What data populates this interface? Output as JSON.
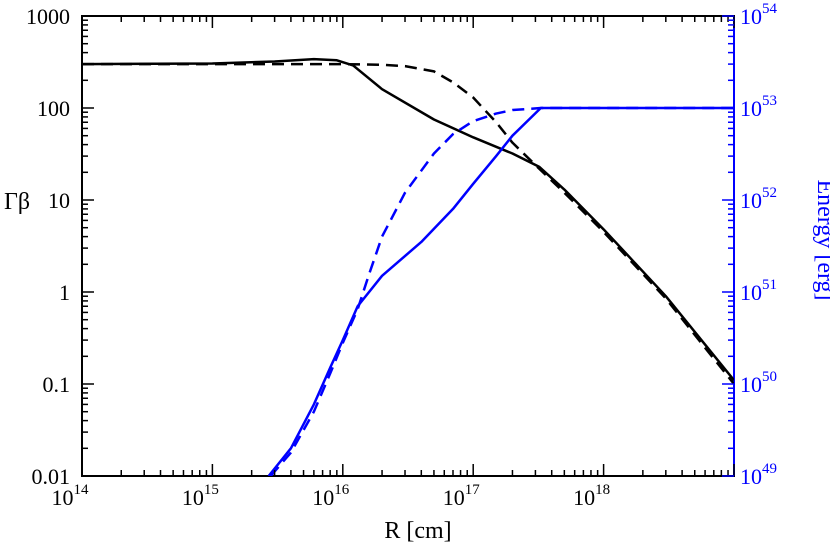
{
  "chart_data": {
    "type": "line",
    "title": "",
    "xlabel": "R [cm]",
    "ylabel_left": "Γβ",
    "ylabel_right": "Energy [erg]",
    "x_scale": "log",
    "y_left_scale": "log",
    "y_right_scale": "log",
    "xlim": [
      100000000000000.0,
      1e+19
    ],
    "ylim_left": [
      0.01,
      1000
    ],
    "ylim_right": [
      1e+49,
      1e+54
    ],
    "grid": false,
    "legend": "none",
    "colors": {
      "gamma_beta": "#000000",
      "energy": "#0000ff"
    },
    "x_ticks": [
      {
        "base": "10",
        "exp": "14"
      },
      {
        "base": "10",
        "exp": "15"
      },
      {
        "base": "10",
        "exp": "16"
      },
      {
        "base": "10",
        "exp": "17"
      },
      {
        "base": "10",
        "exp": "18"
      }
    ],
    "y_left_ticks": [
      "0.01",
      "0.1",
      "1",
      "10",
      "100",
      "1000"
    ],
    "y_right_ticks": [
      {
        "base": "10",
        "exp": "49"
      },
      {
        "base": "10",
        "exp": "50"
      },
      {
        "base": "10",
        "exp": "51"
      },
      {
        "base": "10",
        "exp": "52"
      },
      {
        "base": "10",
        "exp": "53"
      },
      {
        "base": "10",
        "exp": "54"
      }
    ],
    "series": [
      {
        "axis": "left",
        "color": "#000000",
        "style": "solid",
        "x": [
          100000000000000.0,
          1000000000000000.0,
          3000000000000000.0,
          6000000000000000.0,
          9000000000000000.0,
          1.2e+16,
          2e+16,
          5e+16,
          1e+17,
          2e+17,
          3.2e+17,
          5e+17,
          1e+18,
          3e+18,
          1e+19
        ],
        "y": [
          300,
          305,
          320,
          340,
          330,
          290,
          160,
          75,
          48,
          32,
          23,
          13,
          4.8,
          0.9,
          0.11
        ]
      },
      {
        "axis": "left",
        "color": "#000000",
        "style": "dashed",
        "x": [
          100000000000000.0,
          1000000000000000.0,
          5000000000000000.0,
          1e+16,
          2e+16,
          3e+16,
          5e+16,
          7e+16,
          1e+17,
          1.5e+17,
          2e+17,
          3e+17,
          5e+17,
          1e+18,
          3e+18,
          1e+19
        ],
        "y": [
          300,
          300,
          300,
          300,
          295,
          285,
          250,
          190,
          130,
          70,
          42,
          24,
          12,
          4.5,
          0.85,
          0.1
        ]
      },
      {
        "axis": "right",
        "color": "#0000ff",
        "style": "solid",
        "x": [
          2700000000000000.0,
          4000000000000000.0,
          6000000000000000.0,
          8000000000000000.0,
          1e+16,
          1.3e+16,
          2e+16,
          4e+16,
          7e+16,
          1e+17,
          1.5e+17,
          2e+17,
          3.3e+17,
          1e+18,
          1e+19
        ],
        "y": [
          1e+49,
          2e+49,
          6e+49,
          1.5e+50,
          3e+50,
          7e+50,
          1.5e+51,
          3.5e+51,
          8e+51,
          1.5e+52,
          3e+52,
          5e+52,
          1e+53,
          1e+53,
          1e+53
        ]
      },
      {
        "axis": "right",
        "color": "#0000ff",
        "style": "dashed",
        "x": [
          2800000000000000.0,
          4000000000000000.0,
          6000000000000000.0,
          8000000000000000.0,
          1e+16,
          1.3e+16,
          1.6e+16,
          2e+16,
          3e+16,
          5e+16,
          7e+16,
          1e+17,
          1.5e+17,
          2e+17,
          3.3e+17,
          1e+18,
          1e+19
        ],
        "y": [
          1e+49,
          1.8e+49,
          5e+49,
          1.3e+50,
          2.8e+50,
          6.5e+50,
          1.6e+51,
          4e+51,
          1.2e+52,
          3.2e+52,
          5.2e+52,
          7.2e+52,
          8.7e+52,
          9.5e+52,
          1e+53,
          1e+53,
          1e+53
        ]
      }
    ]
  }
}
